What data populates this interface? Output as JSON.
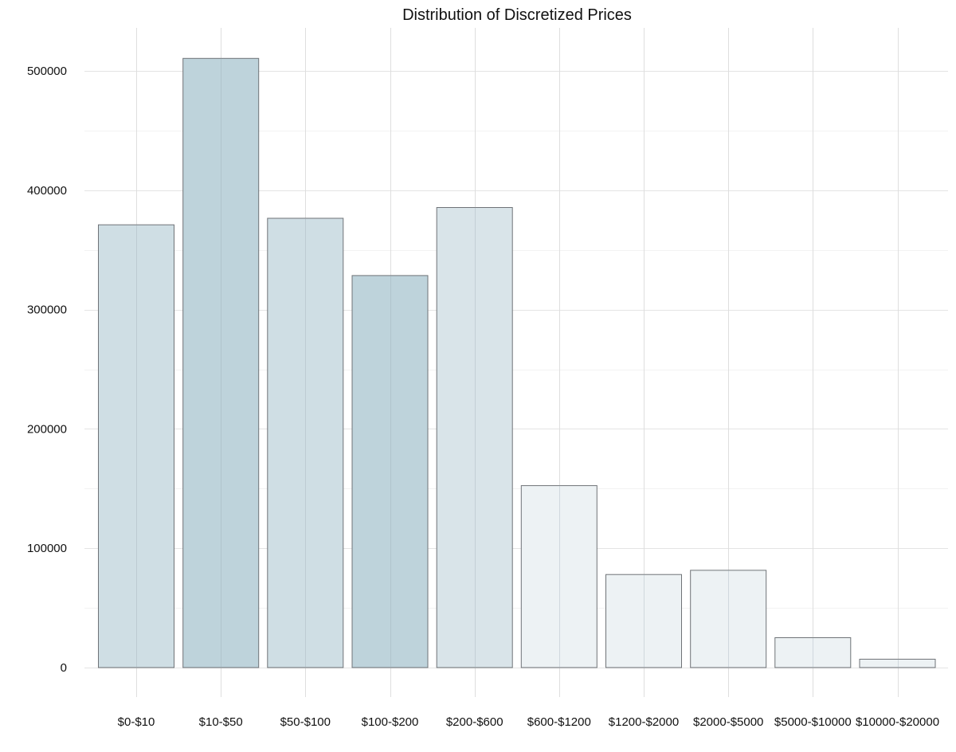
{
  "chart_data": {
    "type": "bar",
    "title": "Distribution of Discretized Prices",
    "xlabel": "",
    "ylabel": "",
    "categories": [
      "$0-$10",
      "$10-$50",
      "$50-$100",
      "$100-$200",
      "$200-$600",
      "$600-$1200",
      "$1200-$2000",
      "$2000-$5000",
      "$5000-$10000",
      "$10000-$20000"
    ],
    "values": [
      371000,
      510500,
      376500,
      328500,
      385500,
      152500,
      78000,
      81500,
      25000,
      7000
    ],
    "bar_colors": [
      "#cfdee4",
      "#bed3db",
      "#cfdee4",
      "#bed3db",
      "#d9e4e9",
      "#edf2f4",
      "#edf2f4",
      "#edf2f4",
      "#edf2f4",
      "#edf2f4"
    ],
    "ylim": [
      -25000,
      536000
    ],
    "yticks": [
      0,
      100000,
      200000,
      300000,
      400000,
      500000
    ],
    "ytick_labels": [
      "0",
      "100000",
      "200000",
      "300000",
      "400000",
      "500000"
    ],
    "minor_yticks": [
      50000,
      150000,
      250000,
      350000,
      450000
    ],
    "grid": true,
    "legend": "none",
    "colors": {
      "bar_edge": "#6f7377",
      "grid_major": "#e4e4e4",
      "grid_minor": "#f3f3f3",
      "background": "#ffffff"
    }
  }
}
